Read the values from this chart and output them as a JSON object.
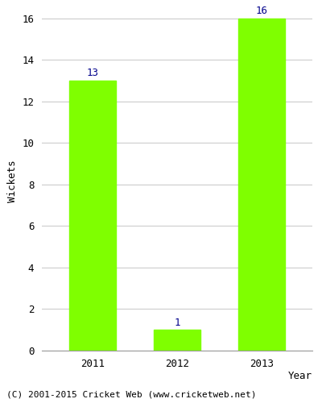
{
  "categories": [
    "2011",
    "2012",
    "2013"
  ],
  "values": [
    13,
    1,
    16
  ],
  "bar_color": "#7FFF00",
  "bar_edge_color": "#7FFF00",
  "label_color": "#00008B",
  "xlabel": "Year",
  "ylabel": "Wickets",
  "ylim": [
    0,
    16
  ],
  "yticks": [
    0,
    2,
    4,
    6,
    8,
    10,
    12,
    14,
    16
  ],
  "grid_color": "#cccccc",
  "bg_color": "#ffffff",
  "footnote": "(C) 2001-2015 Cricket Web (www.cricketweb.net)",
  "label_fontsize": 9,
  "axis_label_fontsize": 9,
  "tick_fontsize": 9,
  "footnote_fontsize": 8,
  "bar_width": 0.55
}
